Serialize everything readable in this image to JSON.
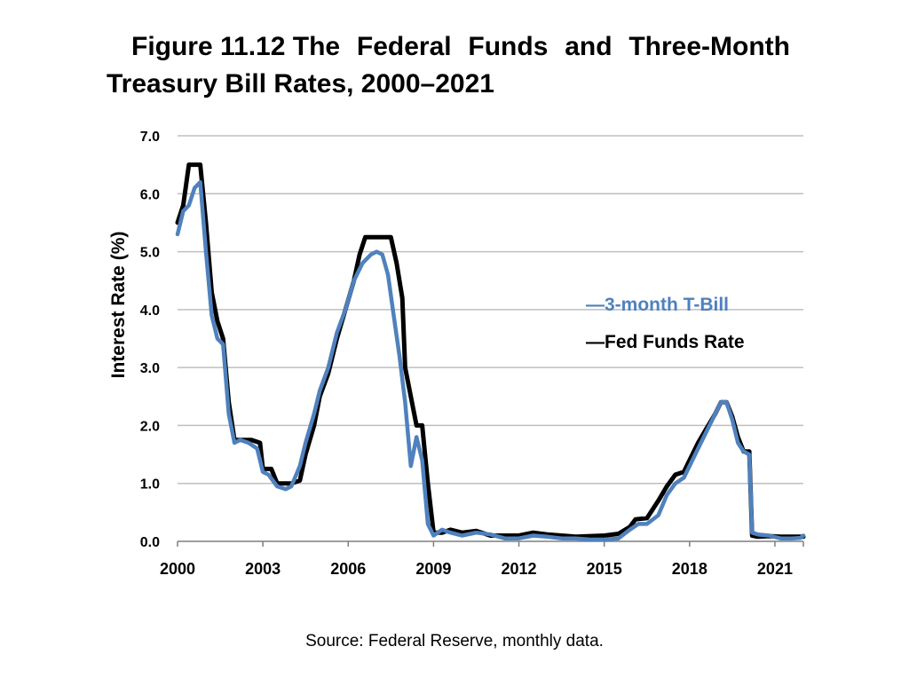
{
  "title": {
    "line1_words": [
      "Figure 11.12 The",
      "Federal",
      "Funds",
      "and",
      "Three-Month"
    ],
    "line2": "Treasury Bill Rates, 2000–2021"
  },
  "source": "Source: Federal Reserve, monthly data.",
  "colors": {
    "fed_funds": "#000000",
    "tbill": "#4f81bd",
    "grid": "#bfbfbf",
    "axis": "#7f7f7f"
  },
  "chart_data": {
    "type": "line",
    "title": "Figure 11.12 The Federal Funds and Three-Month Treasury Bill Rates, 2000–2021",
    "xlabel": "",
    "ylabel": "Interest Rate (%)",
    "xlim": [
      2000.0,
      2022.0
    ],
    "ylim": [
      0.0,
      7.0
    ],
    "x_ticks": [
      2000,
      2003,
      2006,
      2009,
      2012,
      2015,
      2018,
      2021
    ],
    "x_tick_labels": [
      "2000",
      "2003",
      "2006",
      "2009",
      "2012",
      "2015",
      "2018",
      "2021"
    ],
    "y_ticks": [
      0.0,
      1.0,
      2.0,
      3.0,
      4.0,
      5.0,
      6.0,
      7.0
    ],
    "y_tick_labels": [
      "0.0",
      "1.0",
      "2.0",
      "3.0",
      "4.0",
      "5.0",
      "6.0",
      "7.0"
    ],
    "grid": true,
    "legend_position": "right",
    "series": [
      {
        "name": "3-month T-Bill",
        "legend_label": "—3-month T-Bill",
        "color": "#4f81bd",
        "x": [
          2000.0,
          2000.2,
          2000.4,
          2000.6,
          2000.8,
          2001.0,
          2001.2,
          2001.4,
          2001.6,
          2001.8,
          2002.0,
          2002.2,
          2002.5,
          2002.8,
          2003.0,
          2003.2,
          2003.5,
          2003.8,
          2004.0,
          2004.3,
          2004.5,
          2004.8,
          2005.0,
          2005.3,
          2005.6,
          2005.9,
          2006.2,
          2006.5,
          2006.8,
          2007.0,
          2007.2,
          2007.4,
          2007.6,
          2007.8,
          2008.0,
          2008.2,
          2008.4,
          2008.6,
          2008.8,
          2009.0,
          2009.3,
          2009.6,
          2010.0,
          2010.5,
          2011.0,
          2011.5,
          2012.0,
          2012.5,
          2013.0,
          2013.5,
          2014.0,
          2014.5,
          2015.0,
          2015.5,
          2015.9,
          2016.2,
          2016.5,
          2016.9,
          2017.2,
          2017.5,
          2017.8,
          2018.0,
          2018.3,
          2018.6,
          2018.9,
          2019.1,
          2019.3,
          2019.5,
          2019.7,
          2019.9,
          2020.1,
          2020.2,
          2020.4,
          2020.8,
          2021.2,
          2021.6,
          2021.9,
          2022.0
        ],
        "values": [
          5.3,
          5.7,
          5.8,
          6.1,
          6.2,
          5.0,
          3.9,
          3.5,
          3.4,
          2.2,
          1.7,
          1.75,
          1.7,
          1.6,
          1.2,
          1.15,
          0.95,
          0.9,
          0.95,
          1.3,
          1.7,
          2.2,
          2.6,
          3.0,
          3.6,
          4.0,
          4.5,
          4.8,
          4.95,
          5.0,
          4.95,
          4.6,
          3.9,
          3.2,
          2.4,
          1.3,
          1.8,
          1.4,
          0.3,
          0.1,
          0.2,
          0.15,
          0.1,
          0.15,
          0.12,
          0.05,
          0.05,
          0.1,
          0.08,
          0.05,
          0.05,
          0.03,
          0.03,
          0.05,
          0.2,
          0.3,
          0.3,
          0.45,
          0.8,
          1.0,
          1.1,
          1.3,
          1.6,
          1.9,
          2.2,
          2.4,
          2.4,
          2.1,
          1.7,
          1.55,
          1.5,
          0.15,
          0.12,
          0.1,
          0.05,
          0.05,
          0.06,
          0.1
        ]
      },
      {
        "name": "Fed Funds Rate",
        "legend_label": "—Fed Funds Rate",
        "color": "#000000",
        "x": [
          2000.0,
          2000.2,
          2000.4,
          2000.6,
          2000.8,
          2001.0,
          2001.2,
          2001.4,
          2001.6,
          2001.8,
          2002.0,
          2002.3,
          2002.6,
          2002.9,
          2003.0,
          2003.3,
          2003.5,
          2003.8,
          2004.0,
          2004.3,
          2004.5,
          2004.8,
          2005.0,
          2005.3,
          2005.6,
          2005.9,
          2006.2,
          2006.4,
          2006.6,
          2006.8,
          2007.0,
          2007.3,
          2007.5,
          2007.7,
          2007.9,
          2008.0,
          2008.2,
          2008.4,
          2008.6,
          2008.8,
          2009.0,
          2009.3,
          2009.6,
          2010.0,
          2010.5,
          2011.0,
          2011.5,
          2012.0,
          2012.5,
          2013.0,
          2013.5,
          2014.0,
          2014.5,
          2015.0,
          2015.5,
          2015.9,
          2016.1,
          2016.5,
          2016.9,
          2017.2,
          2017.5,
          2017.8,
          2018.0,
          2018.3,
          2018.6,
          2018.9,
          2019.1,
          2019.3,
          2019.5,
          2019.7,
          2019.9,
          2020.1,
          2020.2,
          2020.4,
          2020.8,
          2021.2,
          2021.6,
          2022.0
        ],
        "values": [
          5.5,
          5.8,
          6.5,
          6.5,
          6.5,
          5.5,
          4.3,
          3.8,
          3.5,
          2.4,
          1.75,
          1.75,
          1.75,
          1.7,
          1.25,
          1.25,
          1.0,
          1.0,
          1.0,
          1.05,
          1.5,
          2.0,
          2.5,
          2.9,
          3.5,
          4.0,
          4.5,
          4.95,
          5.25,
          5.25,
          5.25,
          5.25,
          5.25,
          4.8,
          4.2,
          3.0,
          2.5,
          2.0,
          2.0,
          1.0,
          0.15,
          0.15,
          0.2,
          0.15,
          0.18,
          0.1,
          0.1,
          0.1,
          0.15,
          0.12,
          0.1,
          0.08,
          0.09,
          0.1,
          0.13,
          0.25,
          0.38,
          0.4,
          0.7,
          0.95,
          1.15,
          1.2,
          1.4,
          1.7,
          1.95,
          2.2,
          2.4,
          2.4,
          2.15,
          1.8,
          1.55,
          1.55,
          0.1,
          0.08,
          0.09,
          0.08,
          0.08,
          0.08
        ]
      }
    ]
  }
}
